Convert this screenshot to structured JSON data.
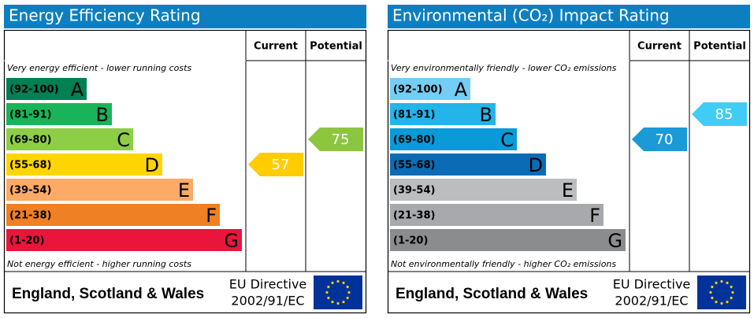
{
  "panels": [
    {
      "title": "Energy Efficiency Rating",
      "col_current": "Current",
      "col_potential": "Potential",
      "top_note": "Very energy efficient - lower running costs",
      "bottom_note": "Not energy efficient - higher running costs",
      "bands": [
        {
          "range": "(92-100)",
          "letter": "A",
          "color": "#008054"
        },
        {
          "range": "(81-91)",
          "letter": "B",
          "color": "#19b459"
        },
        {
          "range": "(69-80)",
          "letter": "C",
          "color": "#8dce46"
        },
        {
          "range": "(55-68)",
          "letter": "D",
          "color": "#ffd500"
        },
        {
          "range": "(39-54)",
          "letter": "E",
          "color": "#fcaa65"
        },
        {
          "range": "(21-38)",
          "letter": "F",
          "color": "#ef8023"
        },
        {
          "range": "(1-20)",
          "letter": "G",
          "color": "#e9153b"
        }
      ],
      "current": {
        "value": 57,
        "color": "#ffcc00"
      },
      "potential": {
        "value": 75,
        "color": "#8cc63f"
      },
      "region": "England, Scotland & Wales",
      "directive_line1": "EU Directive",
      "directive_line2": "2002/91/EC"
    },
    {
      "title": "Environmental (CO₂) Impact Rating",
      "col_current": "Current",
      "col_potential": "Potential",
      "top_note": "Very environmentally friendly - lower CO₂ emissions",
      "bottom_note": "Not environmentally friendly - higher CO₂ emissions",
      "bands": [
        {
          "range": "(92-100)",
          "letter": "A",
          "color": "#74cdf4"
        },
        {
          "range": "(81-91)",
          "letter": "B",
          "color": "#23b4ea"
        },
        {
          "range": "(69-80)",
          "letter": "C",
          "color": "#0a9ad8"
        },
        {
          "range": "(55-68)",
          "letter": "D",
          "color": "#0b6cb5"
        },
        {
          "range": "(39-54)",
          "letter": "E",
          "color": "#bbbdbf"
        },
        {
          "range": "(21-38)",
          "letter": "F",
          "color": "#a7a9ac"
        },
        {
          "range": "(1-20)",
          "letter": "G",
          "color": "#8a8c8e"
        }
      ],
      "current": {
        "value": 70,
        "color": "#1a9ad7"
      },
      "potential": {
        "value": 85,
        "color": "#3fcdf5"
      },
      "region": "England, Scotland & Wales",
      "directive_line1": "EU Directive",
      "directive_line2": "2002/91/EC"
    }
  ]
}
